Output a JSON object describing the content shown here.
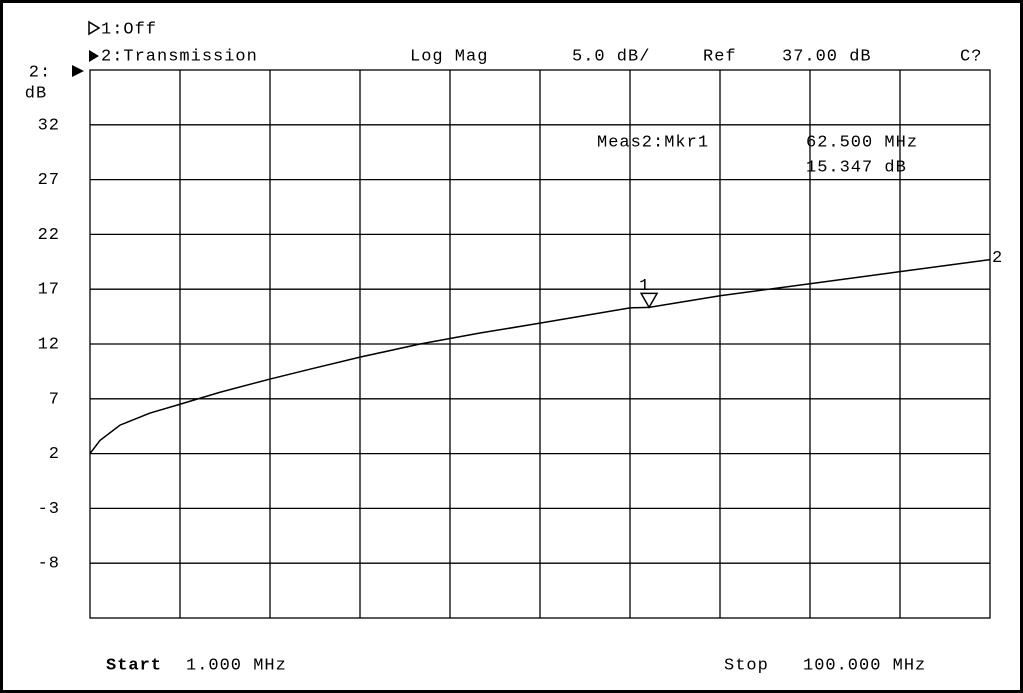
{
  "chart_data": {
    "type": "line",
    "channel_1": "1:Off",
    "channel_2": "2:Transmission",
    "format": "Log Mag",
    "scale": "5.0 dB/",
    "ref_label": "Ref",
    "ref_value": "37.00 dB",
    "corner": "C?",
    "y_channel": "2:",
    "y_unit": "dB",
    "start_label": "Start",
    "start_value": "1.000 MHz",
    "stop_label": "Stop",
    "stop_value": "100.000 MHz",
    "x": [
      1,
      2.1,
      4.3,
      7.6,
      10.9,
      15.3,
      20.8,
      25.2,
      30.7,
      37.3,
      43.9,
      50.5,
      60.4,
      62.5,
      70.3,
      80.2,
      90.1,
      100
    ],
    "series": [
      {
        "name": "2",
        "color": "#000000",
        "values": [
          2.0,
          3.2,
          4.6,
          5.7,
          6.5,
          7.6,
          8.8,
          9.7,
          10.8,
          12.0,
          13.0,
          13.9,
          15.3,
          15.347,
          16.4,
          17.5,
          18.6,
          19.7
        ]
      }
    ],
    "xlim": [
      1,
      100
    ],
    "ylim": [
      -13,
      37
    ],
    "yticks": [
      32,
      27,
      22,
      17,
      12,
      7,
      2,
      -3,
      -8
    ],
    "grid": true,
    "marker": {
      "name": "1",
      "x": 62.5,
      "value": 15.347,
      "title": "Meas2:Mkr1",
      "x_label": "62.500 MHz",
      "value_label": "15.347 dB"
    }
  }
}
